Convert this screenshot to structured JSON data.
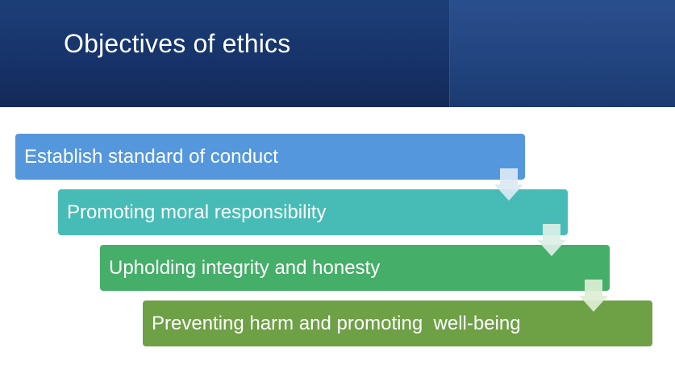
{
  "slide": {
    "title": "Objectives of ethics",
    "steps": [
      {
        "label": "Establish standard of conduct",
        "color": "#5597dc"
      },
      {
        "label": "Promoting moral responsibility",
        "color": "#47bcb6"
      },
      {
        "label": "Upholding integrity and honesty",
        "color": "#45ae68"
      },
      {
        "label": "Preventing harm and promoting  well-being",
        "color": "#6ea046"
      }
    ],
    "arrow_icon": "down-arrow-icon",
    "colors": {
      "header": "#17336a",
      "header_panel": "#21447e",
      "arrow_fill": "#dce9f3"
    }
  }
}
